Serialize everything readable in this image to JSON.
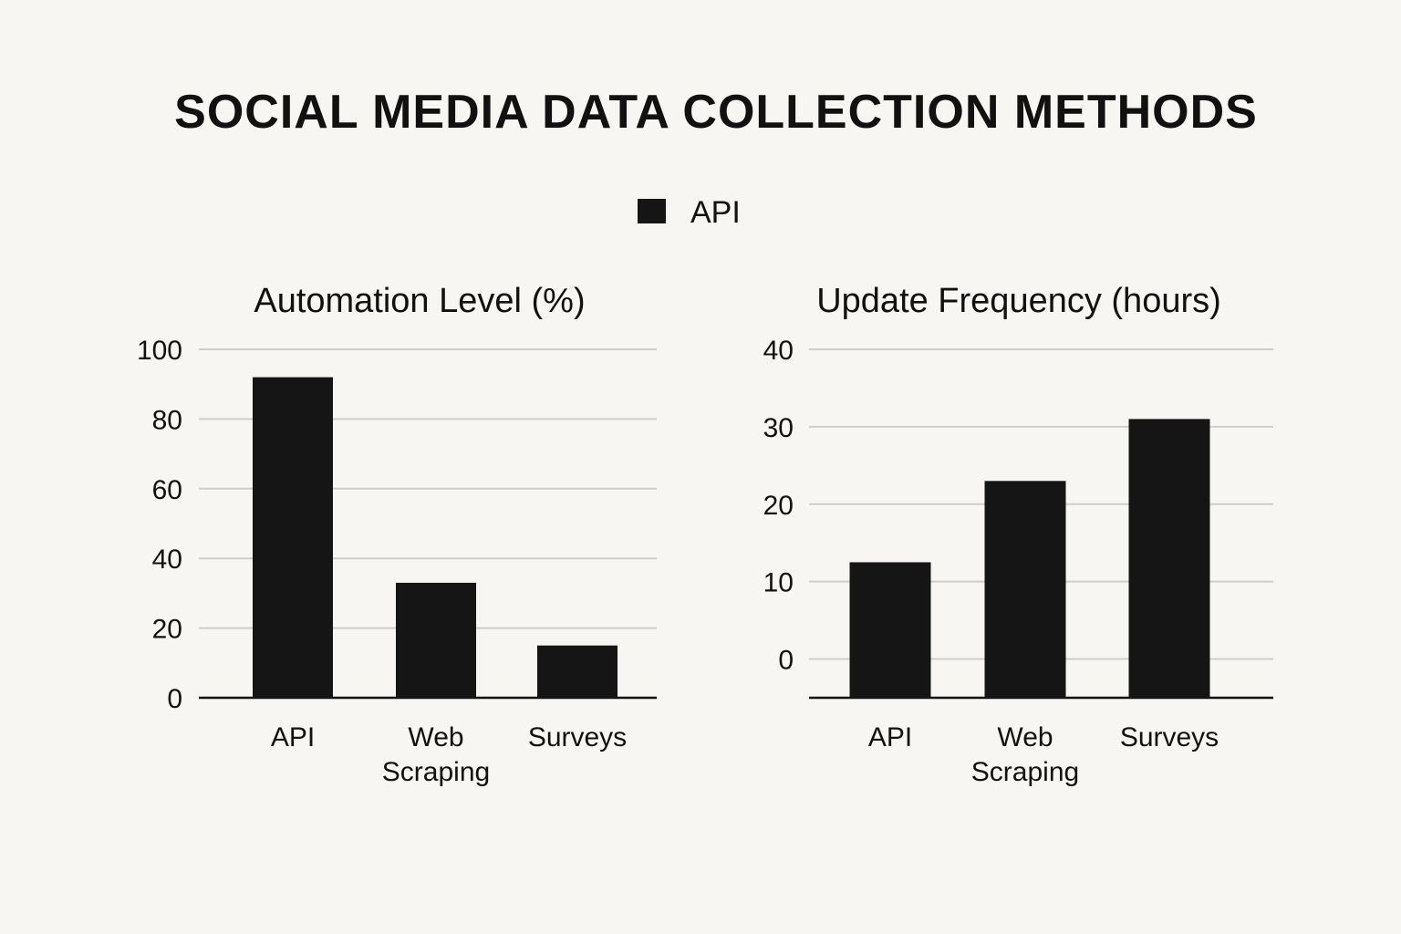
{
  "figure": {
    "title": "SOCIAL MEDIA DATA COLLECTION METHODS",
    "legend": {
      "label": "API",
      "color": "#151515",
      "placement": "top-center"
    }
  },
  "colors": {
    "background": "#f7f6f2",
    "bar": "#151515",
    "grid": "#cfcdc8",
    "axis": "#111111"
  },
  "chart_data": [
    {
      "type": "bar",
      "title": "Automation Level (%)",
      "categories": [
        "API",
        "Web Scraping",
        "Surveys"
      ],
      "category_lines": [
        [
          "API"
        ],
        [
          "Web",
          "Scraping"
        ],
        [
          "Surveys"
        ]
      ],
      "values": [
        92,
        33,
        15
      ],
      "ylim": [
        0,
        100
      ],
      "yticks": [
        0,
        20,
        40,
        60,
        80,
        100
      ],
      "grid": true
    },
    {
      "type": "bar",
      "title": "Update Frequency (hours)",
      "categories": [
        "API",
        "Web Scraping",
        "Surveys"
      ],
      "category_lines": [
        [
          "API"
        ],
        [
          "Web",
          "Scraping"
        ],
        [
          "Surveys"
        ]
      ],
      "values": [
        12.5,
        23,
        31
      ],
      "ylim": [
        -5,
        40
      ],
      "yticks": [
        0,
        10,
        20,
        30,
        40
      ],
      "grid": true
    }
  ]
}
